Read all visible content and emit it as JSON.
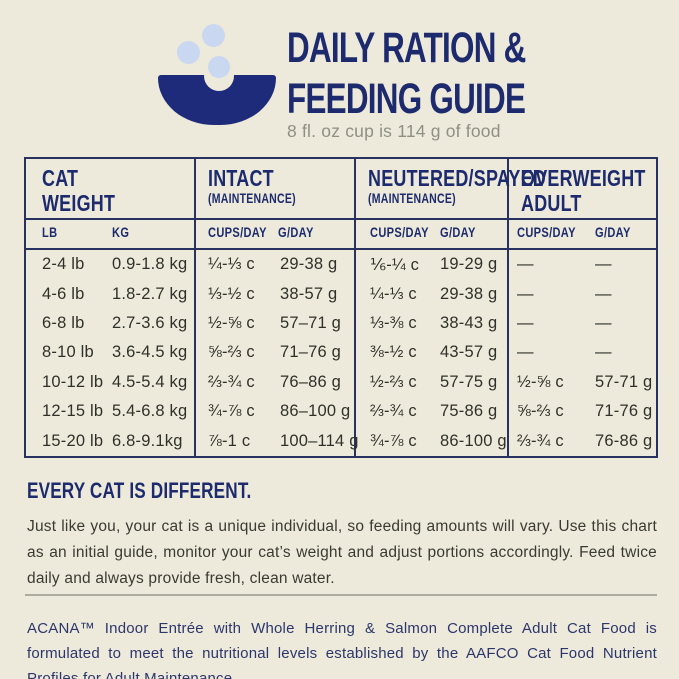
{
  "palette": {
    "background": "#edeadb",
    "navy": "#1d2b6e",
    "bowl_navy": "#1e2b7b",
    "kibble_blue": "#c9d7f0",
    "text_dark": "#30302a",
    "text_gray": "#8f8f82",
    "divider_gray": "#abab9e"
  },
  "header": {
    "icon": "food-bowl-with-kibble",
    "title_line1": "DAILY RATION &",
    "title_line2": "FEEDING GUIDE",
    "subtitle": "8 fl. oz cup is 114 g of food"
  },
  "table": {
    "groups": [
      {
        "label": "CAT WEIGHT",
        "sublabel": ""
      },
      {
        "label": "INTACT",
        "sublabel": "(MAINTENANCE)"
      },
      {
        "label": "NEUTERED/SPAYED",
        "sublabel": "(MAINTENANCE)"
      },
      {
        "label": "OVERWEIGHT ADULT",
        "sublabel": ""
      }
    ],
    "subheaders": [
      "LB",
      "KG",
      "CUPS/DAY",
      "G/DAY",
      "CUPS/DAY",
      "G/DAY",
      "CUPS/DAY",
      "G/DAY"
    ],
    "rows": [
      [
        "2-4 lb",
        "0.9-1.8 kg",
        "¼-⅓ c",
        "29-38 g",
        "⅙-¼ c",
        "19-29 g",
        "—",
        "—"
      ],
      [
        "4-6 lb",
        "1.8-2.7 kg",
        "⅓-½ c",
        "38-57 g",
        "¼-⅓ c",
        "29-38 g",
        "—",
        "—"
      ],
      [
        "6-8 lb",
        "2.7-3.6 kg",
        "½-⅝ c",
        "57–71 g",
        "⅓-⅜ c",
        "38-43 g",
        "—",
        "—"
      ],
      [
        "8-10 lb",
        "3.6-4.5 kg",
        "⅝-⅔ c",
        "71–76 g",
        "⅜-½ c",
        "43-57 g",
        "—",
        "—"
      ],
      [
        "10-12 lb",
        "4.5-5.4 kg",
        "⅔-¾ c",
        "76–86 g",
        "½-⅔ c",
        "57-75 g",
        "½-⅝ c",
        "57-71 g"
      ],
      [
        "12-15 lb",
        "5.4-6.8 kg",
        "¾-⅞ c",
        "86–100 g",
        "⅔-¾ c",
        "75-86 g",
        "⅝-⅔ c",
        "71-76 g"
      ],
      [
        "15-20 lb",
        "6.8-9.1kg",
        "⅞-1 c",
        "100–114 g",
        "¾-⅞ c",
        "86-100 g",
        "⅔-¾ c",
        "76-86 g"
      ]
    ]
  },
  "note": {
    "heading": "EVERY CAT IS DIFFERENT.",
    "body": "Just like you, your cat is a unique individual, so feeding amounts will vary. Use this chart as an initial guide, monitor your cat’s weight and adjust portions accordingly. Feed twice daily and always provide fresh, clean water."
  },
  "footer": {
    "text": "ACANA™ Indoor Entrée with Whole Herring & Salmon Complete Adult Cat Food is formulated to meet the nutritional levels established by the AAFCO Cat Food Nutrient Profiles for Adult Maintenance."
  }
}
